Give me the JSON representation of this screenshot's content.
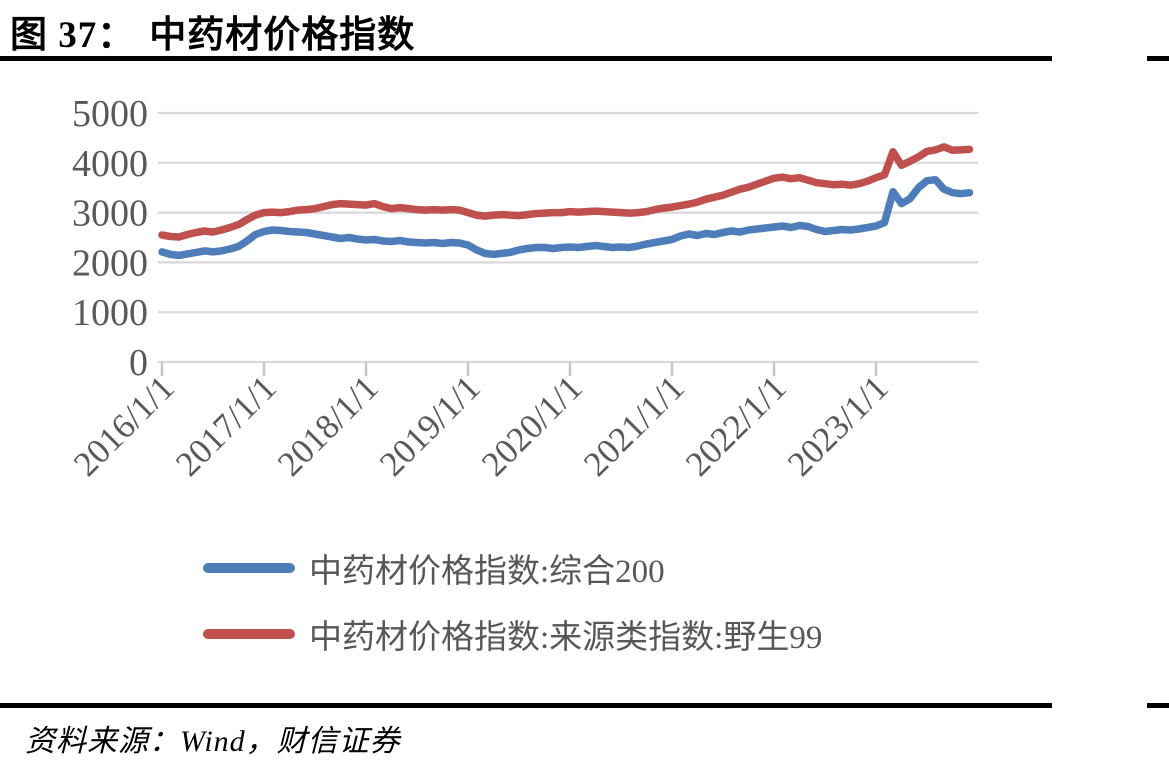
{
  "header": {
    "figure_label": "图 37：",
    "title": "中药材价格指数"
  },
  "footer": {
    "source": "资料来源：Wind，财信证券"
  },
  "colors": {
    "grid": "#D9D9D9",
    "axis": "#C6C6C6",
    "tick_label": "#595959",
    "series_blue": "#4E7DBA",
    "series_red": "#C0504D",
    "divider": "#000000"
  },
  "chart_data": {
    "type": "line",
    "title": "中药材价格指数",
    "xlabel": "",
    "ylabel": "",
    "ylim": [
      0,
      5000
    ],
    "y_ticks": [
      0,
      1000,
      2000,
      3000,
      4000,
      5000
    ],
    "grid": true,
    "legend_position": "bottom-left",
    "x_tick_labels": [
      "2016/1/1",
      "2017/1/1",
      "2018/1/1",
      "2019/1/1",
      "2020/1/1",
      "2021/1/1",
      "2022/1/1",
      "2023/1/1"
    ],
    "x_start_month": "2016-01",
    "x_step": "month",
    "series": [
      {
        "name": "中药材价格指数:综合200",
        "color": "#4E7DBA",
        "values": [
          2210,
          2160,
          2140,
          2170,
          2200,
          2230,
          2210,
          2230,
          2270,
          2320,
          2430,
          2560,
          2620,
          2650,
          2640,
          2620,
          2610,
          2600,
          2570,
          2540,
          2510,
          2480,
          2500,
          2470,
          2450,
          2460,
          2430,
          2420,
          2440,
          2410,
          2400,
          2390,
          2400,
          2380,
          2400,
          2390,
          2350,
          2250,
          2180,
          2160,
          2180,
          2200,
          2250,
          2280,
          2300,
          2300,
          2280,
          2300,
          2310,
          2300,
          2320,
          2340,
          2320,
          2300,
          2310,
          2300,
          2330,
          2370,
          2400,
          2430,
          2460,
          2530,
          2570,
          2540,
          2580,
          2560,
          2600,
          2630,
          2610,
          2650,
          2670,
          2690,
          2710,
          2730,
          2700,
          2740,
          2720,
          2660,
          2620,
          2640,
          2660,
          2650,
          2670,
          2700,
          2730,
          2800,
          3420,
          3180,
          3280,
          3500,
          3640,
          3660,
          3470,
          3400,
          3380,
          3400
        ]
      },
      {
        "name": "中药材价格指数:来源类指数:野生99",
        "color": "#C0504D",
        "values": [
          2550,
          2520,
          2510,
          2560,
          2600,
          2630,
          2610,
          2650,
          2700,
          2760,
          2860,
          2950,
          3000,
          3010,
          3000,
          3020,
          3050,
          3060,
          3080,
          3120,
          3160,
          3180,
          3170,
          3160,
          3150,
          3180,
          3120,
          3080,
          3100,
          3080,
          3060,
          3050,
          3060,
          3050,
          3060,
          3050,
          3000,
          2950,
          2930,
          2950,
          2960,
          2950,
          2940,
          2960,
          2980,
          2990,
          3000,
          3000,
          3020,
          3010,
          3020,
          3030,
          3020,
          3010,
          3000,
          2990,
          3000,
          3020,
          3060,
          3090,
          3110,
          3140,
          3170,
          3210,
          3270,
          3310,
          3350,
          3410,
          3470,
          3510,
          3570,
          3630,
          3690,
          3710,
          3680,
          3700,
          3650,
          3600,
          3580,
          3560,
          3570,
          3550,
          3580,
          3630,
          3700,
          3760,
          4220,
          3950,
          4030,
          4120,
          4230,
          4260,
          4320,
          4250,
          4260,
          4270
        ]
      }
    ]
  }
}
